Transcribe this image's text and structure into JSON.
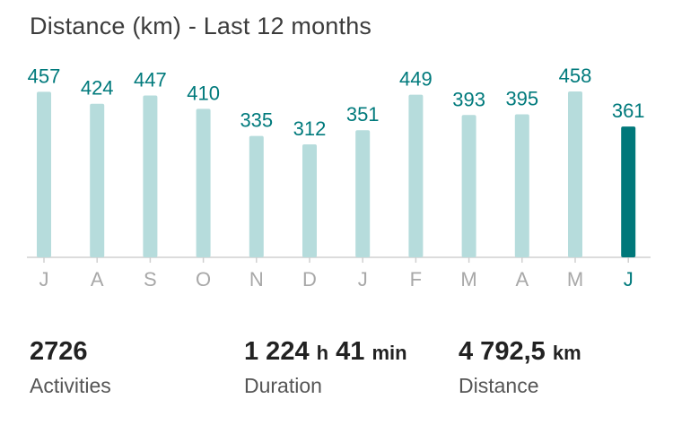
{
  "chart_data": {
    "type": "bar",
    "title": "Distance (km) - Last 12 months",
    "categories": [
      "J",
      "A",
      "S",
      "O",
      "N",
      "D",
      "J",
      "F",
      "M",
      "A",
      "M",
      "J"
    ],
    "values": [
      457,
      424,
      447,
      410,
      335,
      312,
      351,
      449,
      393,
      395,
      458,
      361
    ],
    "highlight_index": 11,
    "ylim": [
      0,
      458
    ],
    "grid": false,
    "colors": {
      "bar": "#b6dcdc",
      "bar_highlight": "#00787a",
      "value_label": "#007a7c",
      "tick_label": "#a8a8a8",
      "tick_label_highlight": "#007a7c",
      "axis": "#d0d0d0"
    }
  },
  "stats": {
    "activities": {
      "value": "2726",
      "label": "Activities"
    },
    "duration": {
      "hours": "1 224",
      "hours_unit": "h",
      "minutes": "41",
      "minutes_unit": "min",
      "label": "Duration"
    },
    "distance": {
      "value": "4 792,5",
      "unit": "km",
      "label": "Distance"
    }
  }
}
